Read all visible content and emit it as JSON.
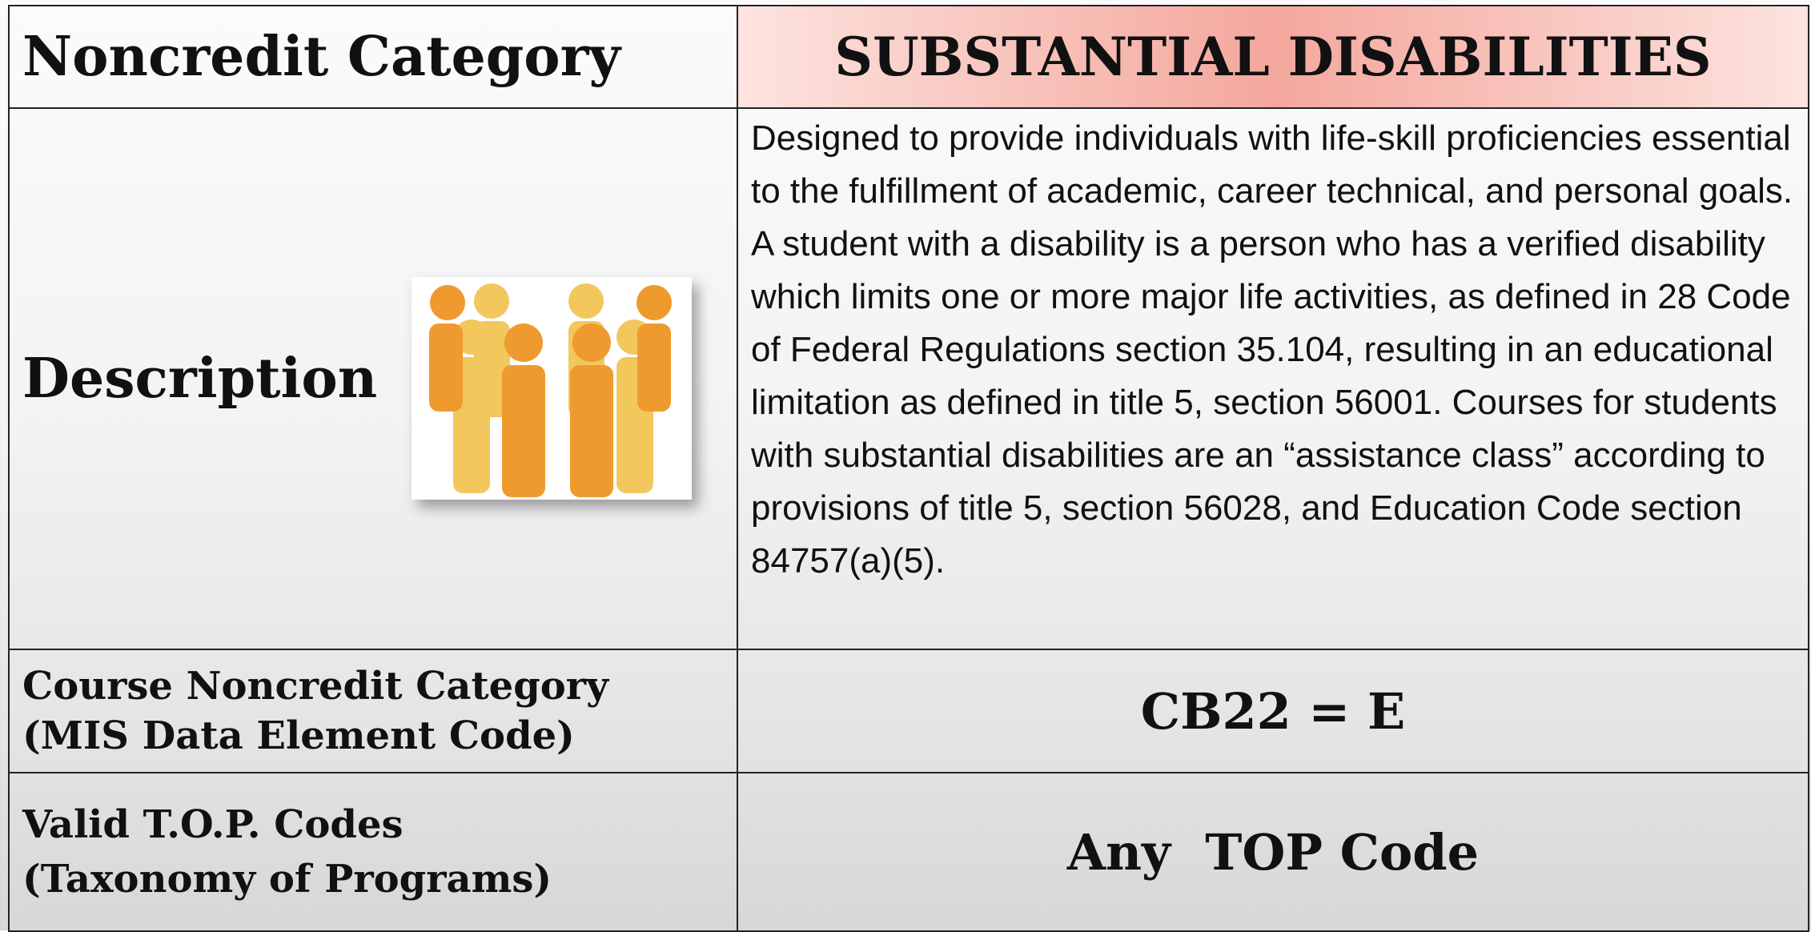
{
  "table": {
    "header": {
      "label": "Noncredit Category",
      "value": "SUBSTANTIAL DISABILITIES"
    },
    "rows": [
      {
        "label": [
          "Description"
        ],
        "value": "Designed to provide individuals with life-skill proficiencies essential to the fulfillment of academic, career technical, and personal goals. A student with a disability is a person who has a verified disability which limits one or more major life activities, as defined in 28 Code of Federal Regulations section 35.104, resulting in an educational limitation as defined in title 5, section 56001. Courses for students with substantial disabilities are an “assistance class” according to provisions of title 5, section 56028, and Education Code section 84757(a)(5)."
      },
      {
        "label": [
          "Course Noncredit Category",
          "(MIS Data Element Code)"
        ],
        "value": "CB22 = E"
      },
      {
        "label": [
          "Valid T.O.P. Codes",
          "(Taxonomy of Programs)"
        ],
        "value": "Any  TOP Code"
      }
    ]
  }
}
